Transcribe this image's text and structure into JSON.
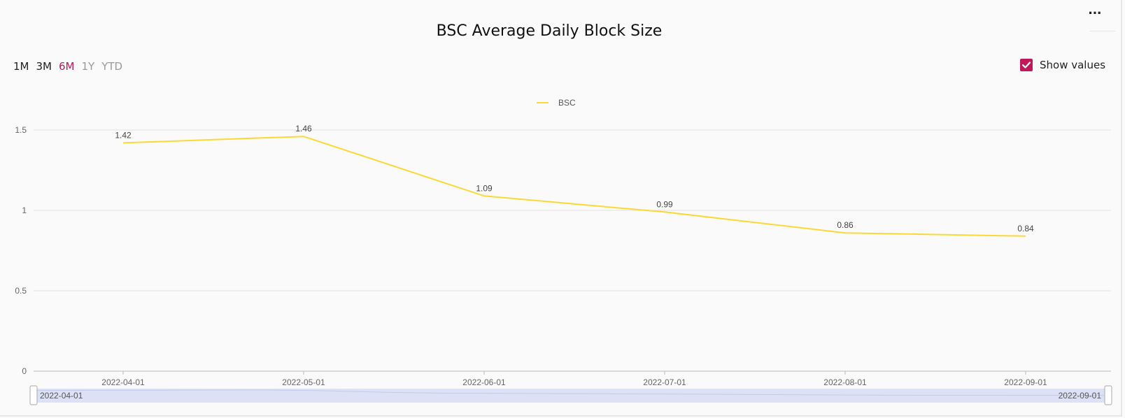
{
  "title": "BSC Average Daily Block Size",
  "menu_label": "···",
  "ranges": [
    {
      "label": "1M",
      "state": "dark"
    },
    {
      "label": "3M",
      "state": "dark"
    },
    {
      "label": "6M",
      "state": "active"
    },
    {
      "label": "1Y",
      "state": "muted"
    },
    {
      "label": "YTD",
      "state": "muted"
    }
  ],
  "show_values": {
    "label": "Show values",
    "checked": true
  },
  "colors": {
    "accent": "#c2185b",
    "series": "#fdd835",
    "slider": "#dde1f5"
  },
  "slider": {
    "start_label": "2022-04-01",
    "end_label": "2022-09-01"
  },
  "chart_data": {
    "type": "line",
    "title": "BSC Average Daily Block Size",
    "x": [
      "2022-04-01",
      "2022-05-01",
      "2022-06-01",
      "2022-07-01",
      "2022-08-01",
      "2022-09-01"
    ],
    "series": [
      {
        "name": "BSC",
        "values": [
          1.42,
          1.46,
          1.09,
          0.99,
          0.86,
          0.84
        ],
        "labels": [
          "1.42",
          "1.46",
          "1.09",
          "0.99",
          "0.86",
          "0.84"
        ]
      }
    ],
    "yticks": [
      0,
      0.5,
      1,
      1.5
    ],
    "ytick_labels": [
      "0",
      "0.5",
      "1",
      "1.5"
    ],
    "ylim": [
      0,
      1.5
    ],
    "grid": true,
    "legend": "top-center"
  }
}
